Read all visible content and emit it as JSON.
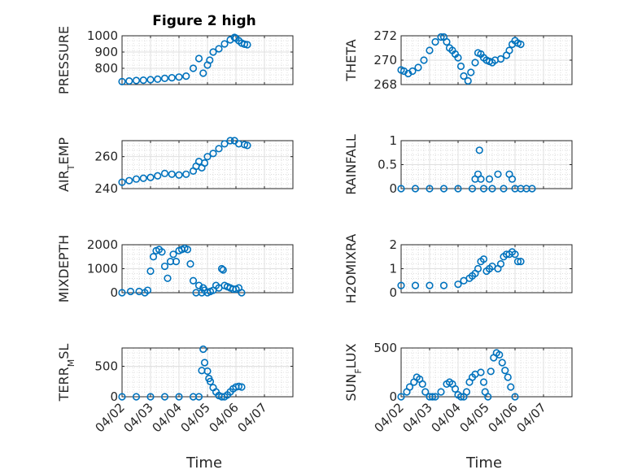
{
  "figure": {
    "title": "Figure 2 high",
    "marker_color": "#0072BD",
    "x_tick_labels": [
      "04/02",
      "04/03",
      "04/04",
      "04/05",
      "04/06",
      "04/07"
    ],
    "x_label": "Time"
  },
  "chart_data": [
    {
      "type": "scatter",
      "ylabel": "PRESSURE",
      "ylim": [
        700,
        1000
      ],
      "yticks": [
        800,
        900,
        1000
      ],
      "xlim": [
        0,
        6
      ],
      "grid": "on",
      "x": [
        0.0,
        0.25,
        0.5,
        0.75,
        1.0,
        1.25,
        1.5,
        1.75,
        2.0,
        2.25,
        2.5,
        2.7,
        2.85,
        3.0,
        3.08,
        3.2,
        3.4,
        3.6,
        3.8,
        3.95,
        4.0,
        4.1,
        4.2,
        4.3,
        4.4
      ],
      "values": [
        718,
        722,
        725,
        727,
        730,
        733,
        738,
        742,
        746,
        752,
        800,
        860,
        770,
        820,
        850,
        900,
        920,
        950,
        975,
        990,
        985,
        970,
        955,
        948,
        945
      ]
    },
    {
      "type": "scatter",
      "ylabel": "THETA",
      "ylim": [
        268,
        272
      ],
      "yticks": [
        268,
        270,
        272
      ],
      "xlim": [
        0,
        6
      ],
      "grid": "on",
      "x": [
        0.0,
        0.1,
        0.25,
        0.4,
        0.6,
        0.8,
        1.0,
        1.2,
        1.4,
        1.5,
        1.6,
        1.7,
        1.8,
        1.9,
        2.0,
        2.1,
        2.2,
        2.35,
        2.45,
        2.6,
        2.7,
        2.8,
        2.9,
        3.0,
        3.1,
        3.2,
        3.3,
        3.5,
        3.7,
        3.8,
        3.9,
        4.0,
        4.1,
        4.2
      ],
      "values": [
        269.2,
        269.1,
        268.9,
        269.1,
        269.4,
        270.0,
        270.8,
        271.5,
        271.9,
        271.9,
        271.5,
        271.0,
        270.8,
        270.5,
        270.2,
        269.5,
        268.7,
        268.3,
        269.0,
        269.8,
        270.6,
        270.5,
        270.2,
        270.0,
        269.9,
        269.8,
        270.0,
        270.1,
        270.4,
        270.8,
        271.3,
        271.6,
        271.4,
        271.3
      ]
    },
    {
      "type": "scatter",
      "ylabel": "AIR_TEMP",
      "ylim": [
        240,
        270
      ],
      "yticks": [
        240,
        260
      ],
      "xlim": [
        0,
        6
      ],
      "grid": "on",
      "x": [
        0.0,
        0.25,
        0.5,
        0.75,
        1.0,
        1.25,
        1.5,
        1.75,
        2.0,
        2.25,
        2.5,
        2.6,
        2.7,
        2.8,
        2.9,
        3.0,
        3.2,
        3.4,
        3.6,
        3.8,
        3.95,
        4.1,
        4.3,
        4.4
      ],
      "values": [
        244,
        245,
        246,
        246.5,
        247,
        248,
        249.5,
        249,
        248.5,
        249,
        251,
        254,
        257,
        253,
        256,
        260,
        262,
        265,
        268,
        270,
        270,
        268,
        267.5,
        267
      ]
    },
    {
      "type": "scatter",
      "ylabel": "RAINFALL",
      "ylim": [
        0,
        1
      ],
      "yticks": [
        0,
        0.5,
        1
      ],
      "xlim": [
        0,
        6
      ],
      "grid": "on",
      "x": [
        0.0,
        0.5,
        1.0,
        1.5,
        2.0,
        2.5,
        2.6,
        2.7,
        2.75,
        2.8,
        2.9,
        3.1,
        3.2,
        3.4,
        3.6,
        3.8,
        3.9,
        4.0,
        4.2,
        4.4,
        4.6
      ],
      "values": [
        0,
        0,
        0,
        0,
        0,
        0,
        0.2,
        0.3,
        0.8,
        0.2,
        0,
        0.2,
        0,
        0.3,
        0,
        0.3,
        0.2,
        0,
        0,
        0,
        0
      ]
    },
    {
      "type": "scatter",
      "ylabel": "MIXDEPTH",
      "ylim": [
        0,
        2000
      ],
      "yticks": [
        0,
        1000,
        2000
      ],
      "xlim": [
        0,
        6
      ],
      "grid": "on",
      "x": [
        0.0,
        0.3,
        0.6,
        0.8,
        0.9,
        1.0,
        1.1,
        1.2,
        1.3,
        1.4,
        1.5,
        1.6,
        1.7,
        1.8,
        1.9,
        2.0,
        2.1,
        2.2,
        2.3,
        2.4,
        2.5,
        2.6,
        2.7,
        2.8,
        2.85,
        2.9,
        3.0,
        3.1,
        3.2,
        3.3,
        3.4,
        3.5,
        3.55,
        3.6,
        3.7,
        3.8,
        3.9,
        4.0,
        4.1,
        4.2
      ],
      "values": [
        0,
        50,
        50,
        0,
        100,
        900,
        1500,
        1750,
        1800,
        1700,
        1100,
        600,
        1300,
        1600,
        1300,
        1750,
        1800,
        1850,
        1800,
        1200,
        500,
        0,
        300,
        0,
        200,
        100,
        0,
        50,
        100,
        300,
        200,
        1000,
        950,
        300,
        250,
        200,
        150,
        150,
        200,
        0
      ]
    },
    {
      "type": "scatter",
      "ylabel": "H2OMIXRA",
      "ylim": [
        0,
        2
      ],
      "yticks": [
        0,
        1,
        2
      ],
      "xlim": [
        0,
        6
      ],
      "grid": "on",
      "x": [
        0.0,
        0.5,
        1.0,
        1.5,
        2.0,
        2.2,
        2.4,
        2.5,
        2.6,
        2.7,
        2.8,
        2.9,
        3.0,
        3.1,
        3.2,
        3.4,
        3.5,
        3.6,
        3.7,
        3.8,
        3.9,
        4.0,
        4.1,
        4.2
      ],
      "values": [
        0.3,
        0.3,
        0.3,
        0.3,
        0.35,
        0.5,
        0.6,
        0.7,
        0.8,
        1.0,
        1.3,
        1.4,
        0.9,
        1.0,
        1.1,
        1.0,
        1.2,
        1.5,
        1.6,
        1.6,
        1.7,
        1.6,
        1.3,
        1.3
      ]
    },
    {
      "type": "scatter",
      "ylabel": "TERR_MSL",
      "ylim": [
        0,
        800
      ],
      "yticks": [
        0,
        500
      ],
      "xlim": [
        0,
        6
      ],
      "grid": "on",
      "x": [
        0.0,
        0.5,
        1.0,
        1.5,
        2.0,
        2.5,
        2.7,
        2.8,
        2.85,
        2.9,
        3.0,
        3.05,
        3.1,
        3.2,
        3.3,
        3.4,
        3.5,
        3.6,
        3.7,
        3.8,
        3.9,
        4.0,
        4.1,
        4.2
      ],
      "values": [
        0,
        0,
        0,
        0,
        0,
        0,
        0,
        430,
        780,
        560,
        420,
        300,
        250,
        150,
        80,
        20,
        0,
        0,
        30,
        80,
        130,
        160,
        170,
        160
      ]
    },
    {
      "type": "scatter",
      "ylabel": "SUN_FLUX",
      "ylim": [
        0,
        500
      ],
      "yticks": [
        0,
        500
      ],
      "xlim": [
        0,
        6
      ],
      "grid": "on",
      "x": [
        0.0,
        0.2,
        0.3,
        0.45,
        0.55,
        0.65,
        0.75,
        0.85,
        1.0,
        1.1,
        1.2,
        1.4,
        1.6,
        1.7,
        1.8,
        1.9,
        2.0,
        2.1,
        2.2,
        2.3,
        2.4,
        2.5,
        2.6,
        2.8,
        2.9,
        2.95,
        3.05,
        3.15,
        3.25,
        3.35,
        3.45,
        3.55,
        3.65,
        3.75,
        3.85,
        4.0
      ],
      "values": [
        0,
        50,
        100,
        150,
        200,
        180,
        130,
        50,
        0,
        0,
        0,
        50,
        130,
        150,
        130,
        80,
        20,
        0,
        0,
        50,
        150,
        200,
        230,
        250,
        150,
        50,
        0,
        260,
        400,
        450,
        430,
        350,
        270,
        200,
        100,
        0
      ]
    }
  ]
}
